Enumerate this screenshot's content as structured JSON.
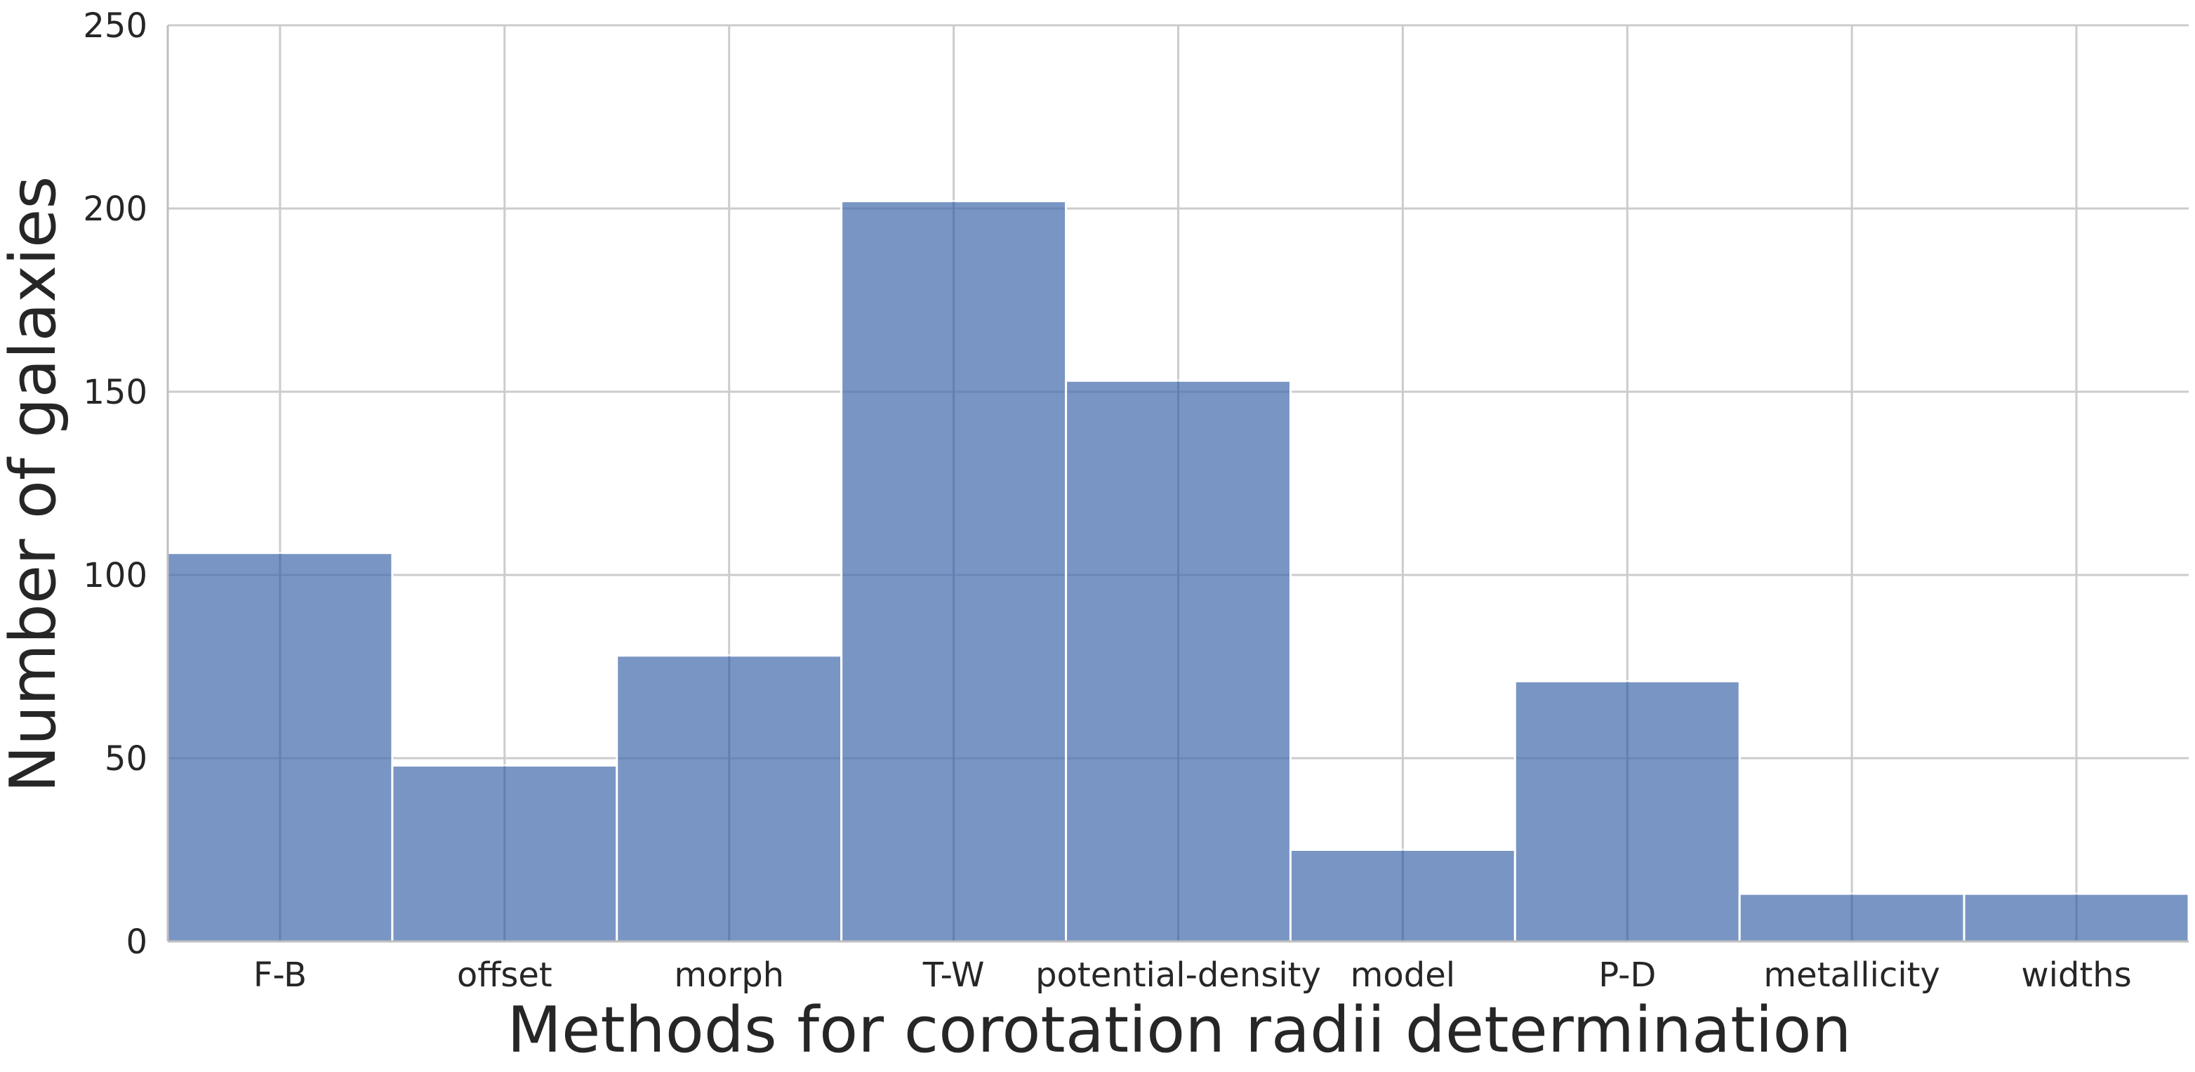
{
  "chart_data": {
    "type": "bar",
    "title": "",
    "xlabel": "Methods for corotation radii determination",
    "ylabel": "Number of galaxies",
    "categories": [
      "F-B",
      "offset",
      "morph",
      "T-W",
      "potential-density",
      "model",
      "P-D",
      "metallicity",
      "widths"
    ],
    "values": [
      106,
      48,
      78,
      202,
      153,
      25,
      71,
      13,
      13
    ],
    "ylim": [
      0,
      250
    ],
    "yticks": [
      0,
      50,
      100,
      150,
      200,
      250
    ],
    "grid": true,
    "legend": "none",
    "bar_color": "#4c72b0"
  }
}
